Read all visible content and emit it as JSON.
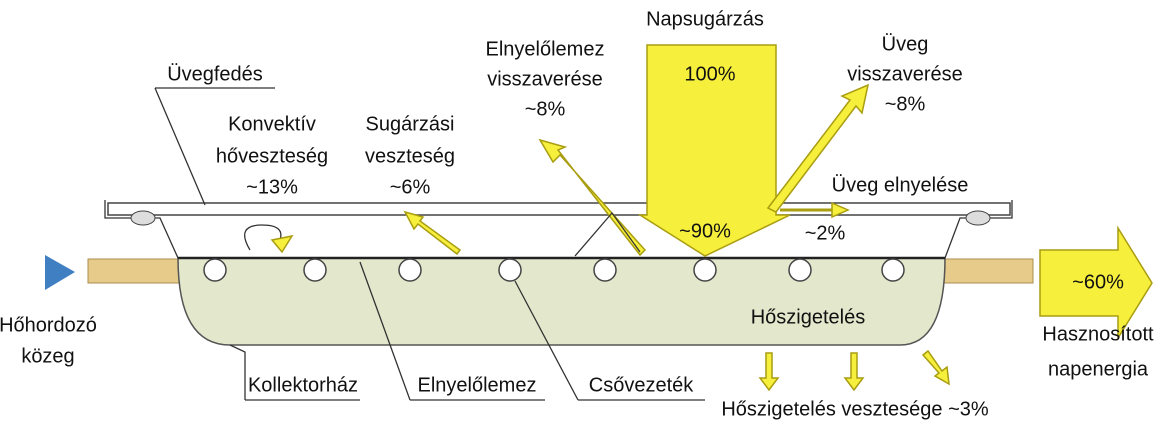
{
  "diagram": {
    "sun": {
      "title": "Napsugárzás",
      "value": "100%"
    },
    "glass_reflection": [
      "Üveg",
      "visszaverése",
      "~8%"
    ],
    "absorber_reflection": [
      "Elnyelőlemez",
      "visszaverése",
      "~8%"
    ],
    "glass_cover": "Üvegfedés",
    "convective_loss": [
      "Konvektív",
      "hőveszteség",
      "~13%"
    ],
    "radiation_loss": [
      "Sugárzási",
      "veszteség",
      "~6%"
    ],
    "glass_absorption": "Üveg elnyelése",
    "transmitted": "~90%",
    "glass_absorption_value": "~2%",
    "useful": {
      "value": "~60%",
      "lines": [
        "Hasznosított",
        "napenergia"
      ]
    },
    "fluid": [
      "Hőhordozó",
      "közeg"
    ],
    "insulation": "Hőszigetelés",
    "housing": "Kollektorház",
    "absorber": "Elnyelőlemez",
    "pipe": "Csővezeték",
    "insulation_loss": "Hőszigetelés vesztesége ~3%"
  }
}
